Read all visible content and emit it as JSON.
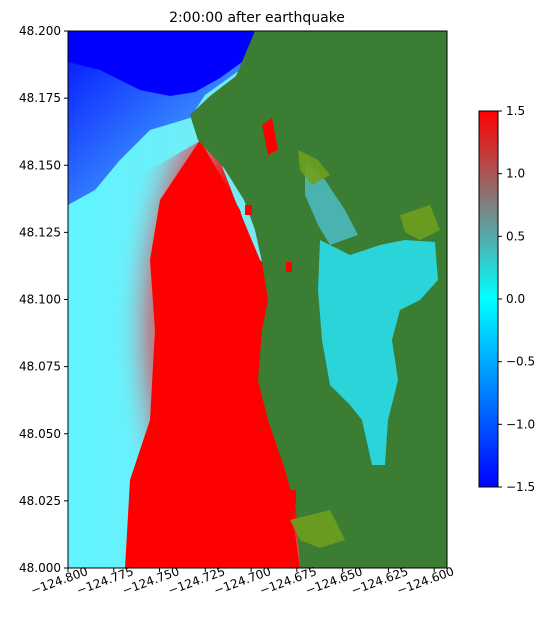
{
  "chart_data": {
    "type": "heatmap",
    "title": "2:00:00 after earthquake",
    "xlabel": "",
    "ylabel": "",
    "xlim": [
      -124.8,
      -124.593
    ],
    "ylim": [
      48.0,
      48.2
    ],
    "x_ticks": [
      -124.8,
      -124.775,
      -124.75,
      -124.725,
      -124.7,
      -124.675,
      -124.65,
      -124.625,
      -124.6
    ],
    "x_tick_labels": [
      "−124.800",
      "−124.775",
      "−124.750",
      "−124.725",
      "−124.700",
      "−124.675",
      "−124.650",
      "−124.625",
      "−124.600"
    ],
    "y_ticks": [
      48.0,
      48.025,
      48.05,
      48.075,
      48.1,
      48.125,
      48.15,
      48.175,
      48.2
    ],
    "y_tick_labels": [
      "48.000",
      "48.025",
      "48.050",
      "48.075",
      "48.100",
      "48.125",
      "48.150",
      "48.175",
      "48.200"
    ],
    "colorbar": {
      "range": [
        -1.5,
        1.5
      ],
      "ticks": [
        -1.5,
        -1.0,
        -0.5,
        0.0,
        0.5,
        1.0,
        1.5
      ],
      "tick_labels": [
        "−1.5",
        "−1.0",
        "−0.5",
        "0.0",
        "0.5",
        "1.0",
        "1.5"
      ],
      "colormap": [
        "#0000ff",
        "#00ffff",
        "#ff0000"
      ]
    },
    "land_color": "#3a7d33",
    "grid": false
  }
}
